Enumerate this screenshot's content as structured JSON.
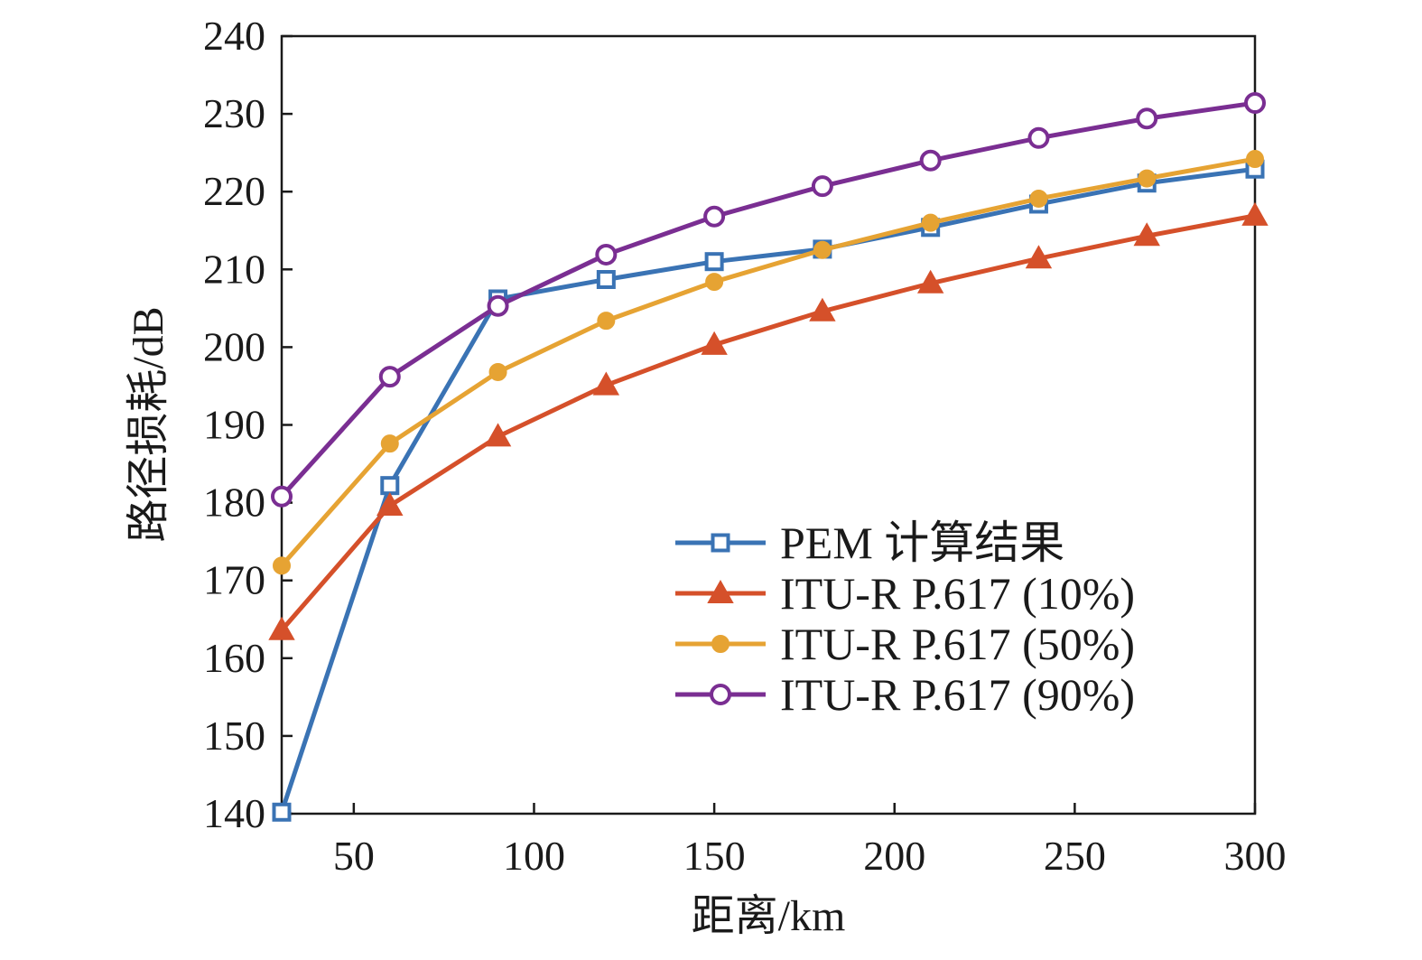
{
  "chart_data": {
    "type": "line",
    "xlabel": "距离/km",
    "ylabel": "路径损耗/dB",
    "xlim": [
      30,
      300
    ],
    "ylim": [
      140,
      240
    ],
    "xticks": [
      50,
      100,
      150,
      200,
      250,
      300
    ],
    "yticks": [
      140,
      150,
      160,
      170,
      180,
      190,
      200,
      210,
      220,
      230,
      240
    ],
    "x": [
      30,
      60,
      90,
      120,
      150,
      180,
      210,
      240,
      270,
      300
    ],
    "grid": false,
    "legend_position": "lower-right",
    "series": [
      {
        "name": "PEM 计算结果",
        "color": "#3a73b4",
        "marker": "square",
        "values": [
          140.2,
          182.2,
          206.2,
          208.7,
          211.0,
          212.6,
          215.4,
          218.4,
          221.1,
          222.9
        ]
      },
      {
        "name": "ITU-R P.617 (10%)",
        "color": "#d5502a",
        "marker": "triangle",
        "values": [
          163.6,
          179.6,
          188.5,
          195.1,
          200.3,
          204.6,
          208.2,
          211.4,
          214.3,
          216.9
        ]
      },
      {
        "name": "ITU-R P.617 (50%)",
        "color": "#e6a333",
        "marker": "circle-filled",
        "values": [
          171.9,
          187.6,
          196.8,
          203.4,
          208.4,
          212.5,
          216.0,
          219.1,
          221.7,
          224.2
        ]
      },
      {
        "name": "ITU-R P.617 (90%)",
        "color": "#7a2e92",
        "marker": "circle-open",
        "values": [
          180.8,
          196.2,
          205.3,
          211.9,
          216.8,
          220.7,
          224.0,
          226.9,
          229.4,
          231.4
        ]
      }
    ]
  }
}
